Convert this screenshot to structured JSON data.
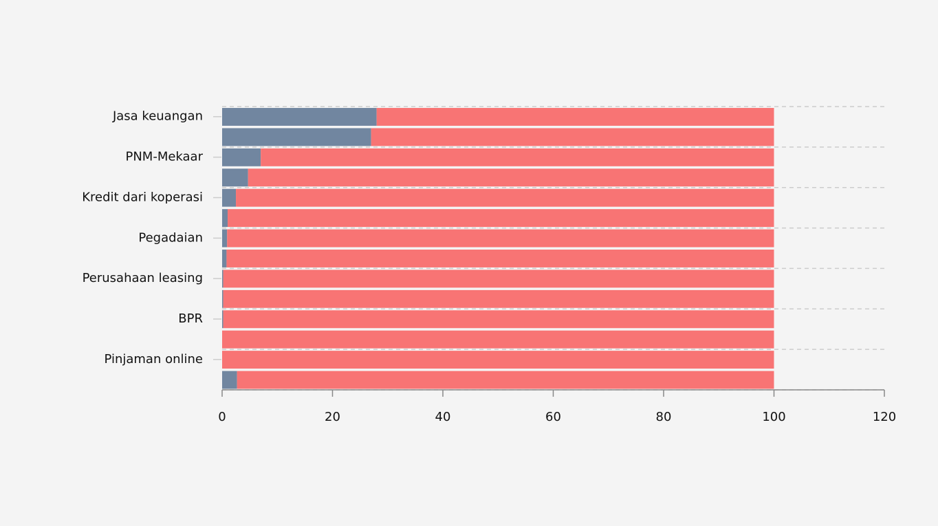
{
  "chart_data": {
    "type": "stacked-barh",
    "categories": [
      "Jasa keuangan",
      null,
      "PNM-Mekaar",
      null,
      "Kredit dari koperasi",
      null,
      "Pegadaian",
      null,
      "Perusahaan leasing",
      null,
      "BPR",
      null,
      "Pinjaman online",
      null
    ],
    "series": [
      {
        "color": "#7186a0",
        "values": [
          28,
          27,
          7,
          4.7,
          2.5,
          1,
          0.9,
          0.8,
          0.2,
          0.2,
          0.2,
          0,
          0,
          2.7
        ]
      },
      {
        "color": "#f87474",
        "values": [
          72,
          73,
          93,
          95.3,
          97.5,
          99,
          99.1,
          99.2,
          99.8,
          99.8,
          99.8,
          100,
          100,
          97.3
        ]
      }
    ],
    "xlim": [
      0,
      120
    ],
    "xticks": [
      0,
      20,
      40,
      60,
      80,
      100,
      120
    ]
  }
}
